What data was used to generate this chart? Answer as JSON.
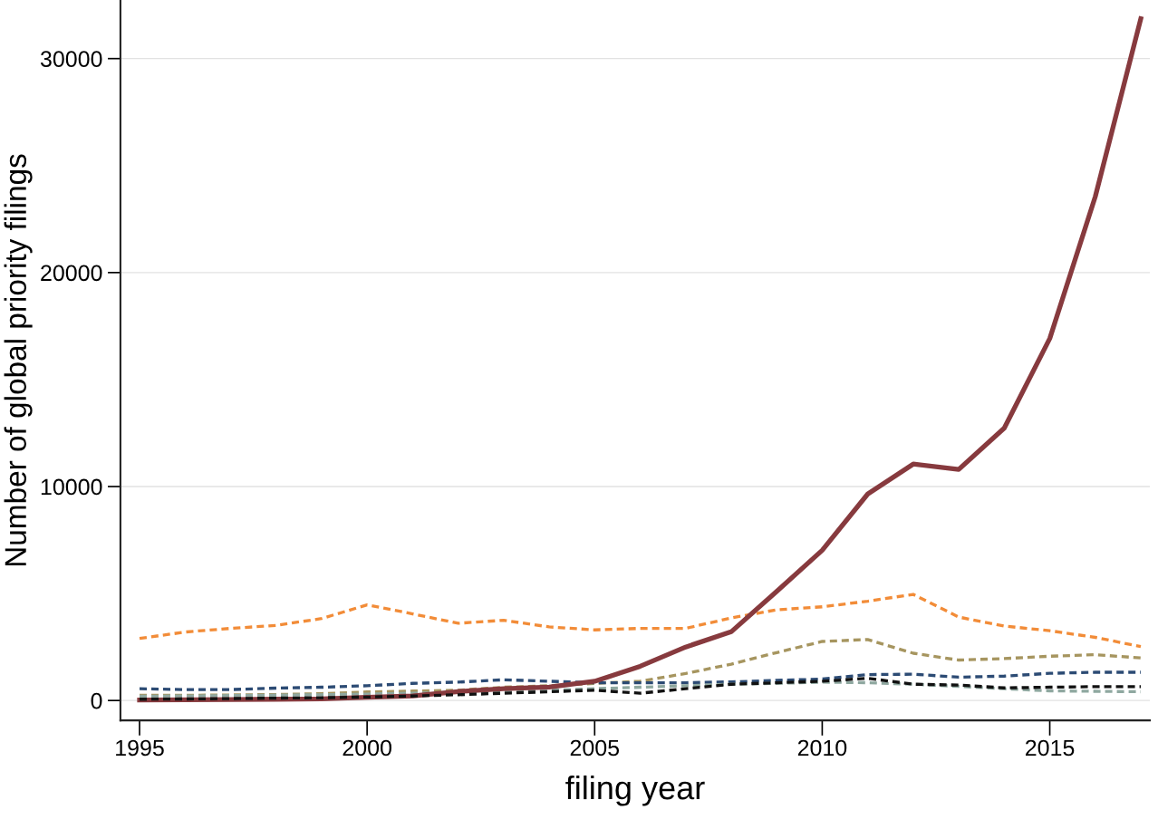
{
  "chart_data": {
    "type": "line",
    "xlabel": "filing year",
    "ylabel": "Number of global priority filings",
    "x": [
      1995,
      1996,
      1997,
      1998,
      1999,
      2000,
      2001,
      2002,
      2003,
      2004,
      2005,
      2006,
      2007,
      2008,
      2009,
      2010,
      2011,
      2012,
      2013,
      2014,
      2015,
      2016,
      2017
    ],
    "series": [
      {
        "color": "#f28c38",
        "line_style": "dashed",
        "values": [
          2900,
          3200,
          3370,
          3510,
          3830,
          4470,
          4050,
          3610,
          3750,
          3440,
          3300,
          3370,
          3370,
          3860,
          4240,
          4380,
          4640,
          4960,
          3900,
          3480,
          3260,
          2950,
          2520
        ]
      },
      {
        "color": "#a6955f",
        "line_style": "dashed",
        "values": [
          240,
          240,
          260,
          280,
          320,
          400,
          440,
          480,
          620,
          690,
          800,
          900,
          1260,
          1700,
          2240,
          2760,
          2850,
          2210,
          1890,
          1960,
          2070,
          2140,
          1990
        ]
      },
      {
        "color": "#2c4b74",
        "line_style": "dashed",
        "values": [
          550,
          510,
          510,
          580,
          620,
          690,
          800,
          860,
          970,
          900,
          830,
          830,
          830,
          870,
          940,
          1000,
          1210,
          1230,
          1090,
          1140,
          1270,
          1320,
          1320
        ]
      },
      {
        "color": "#8fa8a0",
        "line_style": "dashed",
        "values": [
          200,
          210,
          230,
          250,
          270,
          300,
          340,
          380,
          410,
          480,
          550,
          620,
          690,
          760,
          800,
          860,
          830,
          760,
          660,
          550,
          450,
          430,
          410
        ]
      },
      {
        "color": "#873a3e",
        "line_style": "solid",
        "values": [
          20,
          30,
          40,
          60,
          80,
          150,
          210,
          420,
          550,
          630,
          900,
          1600,
          2500,
          3210,
          5100,
          7020,
          9650,
          11050,
          10800,
          12730,
          16920,
          23550,
          31860
        ]
      },
      {
        "color": "#111111",
        "line_style": "dashed",
        "values": [
          60,
          70,
          90,
          110,
          130,
          160,
          210,
          270,
          340,
          410,
          480,
          340,
          550,
          760,
          830,
          900,
          1040,
          760,
          720,
          590,
          620,
          650,
          650
        ]
      }
    ],
    "xlim": [
      1994.58,
      2017.2
    ],
    "ylim": [
      -930,
      32700
    ],
    "xticks": [
      1995,
      2000,
      2005,
      2010,
      2015
    ],
    "yticks": [
      0,
      10000,
      20000,
      30000
    ],
    "grid": "y"
  }
}
